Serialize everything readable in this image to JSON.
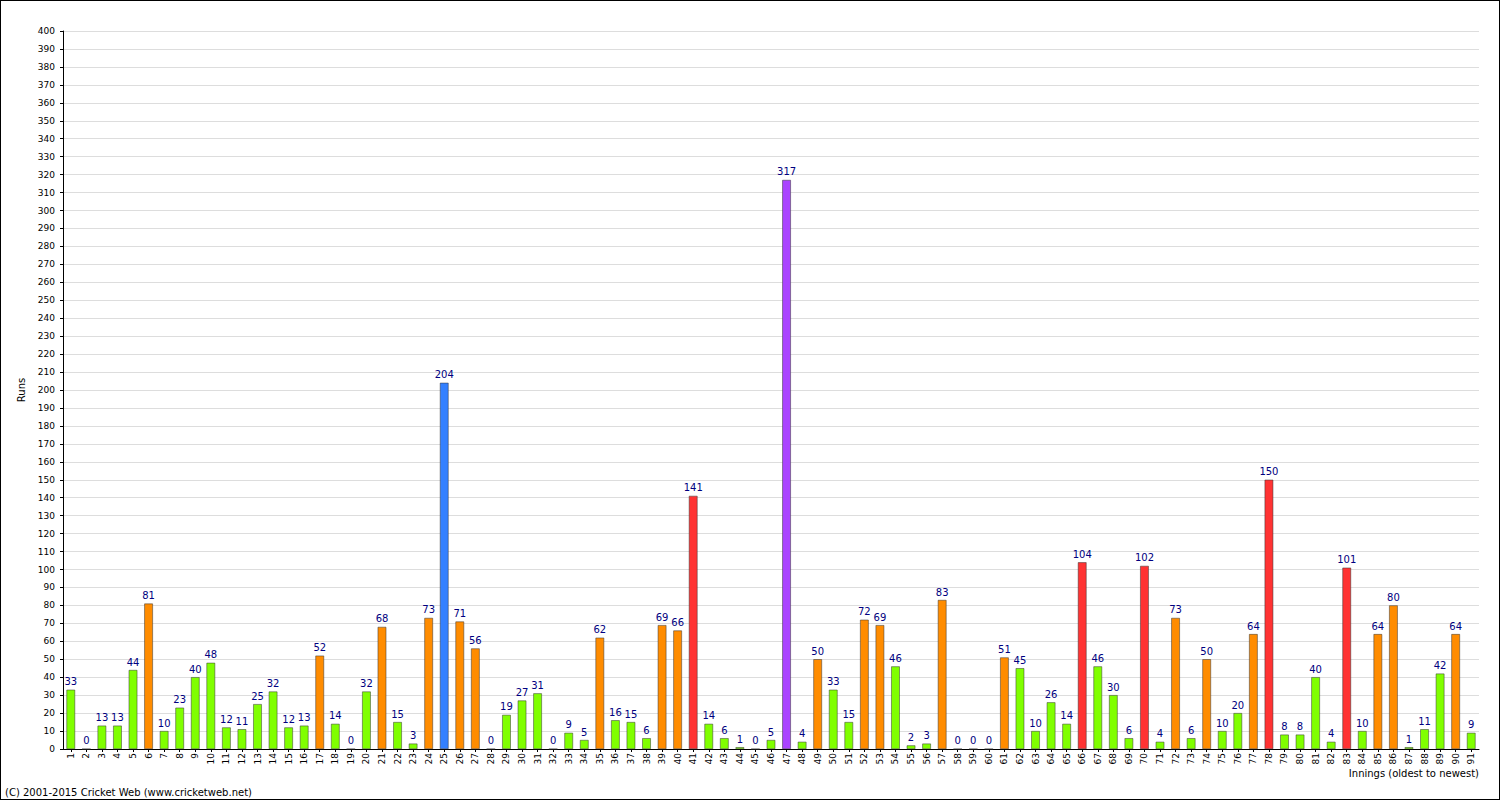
{
  "chart_data": {
    "type": "bar",
    "y_label": "Runs",
    "x_label": "Innings (oldest to newest)",
    "annotations": [
      "(C) 2001-2015 Cricket Web (www.cricketweb.net)"
    ],
    "categories": [
      "1",
      "2",
      "3",
      "4",
      "5",
      "6",
      "7",
      "8",
      "9",
      "10",
      "11",
      "12",
      "13",
      "14",
      "15",
      "16",
      "17",
      "18",
      "19",
      "20",
      "21",
      "22",
      "23",
      "24",
      "25",
      "26",
      "27",
      "28",
      "29",
      "30",
      "31",
      "32",
      "33",
      "34",
      "35",
      "36",
      "37",
      "38",
      "39",
      "40",
      "41",
      "42",
      "43",
      "44",
      "45",
      "46",
      "47",
      "48",
      "49",
      "50",
      "51",
      "52",
      "53",
      "54",
      "55",
      "56",
      "57",
      "58",
      "59",
      "60",
      "61",
      "62",
      "63",
      "64",
      "65",
      "66",
      "67",
      "68",
      "69",
      "70",
      "71",
      "72",
      "73",
      "74",
      "75",
      "76",
      "77",
      "78",
      "79",
      "80",
      "81",
      "82",
      "83",
      "84",
      "85",
      "86",
      "87",
      "88",
      "89",
      "90",
      "91"
    ],
    "values": [
      33,
      0,
      13,
      13,
      44,
      81,
      10,
      23,
      40,
      48,
      12,
      11,
      25,
      32,
      12,
      13,
      52,
      14,
      0,
      32,
      68,
      15,
      3,
      73,
      204,
      71,
      56,
      0,
      19,
      27,
      31,
      0,
      9,
      5,
      62,
      16,
      15,
      6,
      69,
      66,
      141,
      14,
      6,
      1,
      0,
      5,
      317,
      4,
      50,
      33,
      15,
      72,
      69,
      46,
      2,
      3,
      83,
      0,
      0,
      0,
      51,
      45,
      10,
      26,
      14,
      104,
      46,
      30,
      6,
      102,
      4,
      73,
      6,
      50,
      10,
      20,
      64,
      150,
      8,
      8,
      40,
      4,
      101,
      10,
      64,
      80,
      1,
      11,
      42,
      64,
      9
    ],
    "colors": [
      "#80ff00",
      "#80ff00",
      "#80ff00",
      "#80ff00",
      "#80ff00",
      "#ff8c00",
      "#80ff00",
      "#80ff00",
      "#80ff00",
      "#80ff00",
      "#80ff00",
      "#80ff00",
      "#80ff00",
      "#80ff00",
      "#80ff00",
      "#80ff00",
      "#ff8c00",
      "#80ff00",
      "#80ff00",
      "#80ff00",
      "#ff8c00",
      "#80ff00",
      "#80ff00",
      "#ff8c00",
      "#3380ff",
      "#ff8c00",
      "#ff8c00",
      "#80ff00",
      "#80ff00",
      "#80ff00",
      "#80ff00",
      "#80ff00",
      "#80ff00",
      "#80ff00",
      "#ff8c00",
      "#80ff00",
      "#80ff00",
      "#80ff00",
      "#ff8c00",
      "#ff8c00",
      "#ff3333",
      "#80ff00",
      "#80ff00",
      "#80ff00",
      "#80ff00",
      "#80ff00",
      "#aa44ff",
      "#80ff00",
      "#ff8c00",
      "#80ff00",
      "#80ff00",
      "#ff8c00",
      "#ff8c00",
      "#80ff00",
      "#80ff00",
      "#80ff00",
      "#ff8c00",
      "#80ff00",
      "#80ff00",
      "#80ff00",
      "#ff8c00",
      "#80ff00",
      "#80ff00",
      "#80ff00",
      "#80ff00",
      "#ff3333",
      "#80ff00",
      "#80ff00",
      "#80ff00",
      "#ff3333",
      "#80ff00",
      "#ff8c00",
      "#80ff00",
      "#ff8c00",
      "#80ff00",
      "#80ff00",
      "#ff8c00",
      "#ff3333",
      "#80ff00",
      "#80ff00",
      "#80ff00",
      "#80ff00",
      "#ff3333",
      "#80ff00",
      "#ff8c00",
      "#ff8c00",
      "#80ff00",
      "#80ff00",
      "#80ff00",
      "#ff8c00",
      "#80ff00"
    ],
    "ylim": [
      0,
      400
    ],
    "yticks": [
      0,
      10,
      20,
      30,
      40,
      50,
      60,
      70,
      80,
      90,
      100,
      110,
      120,
      130,
      140,
      150,
      160,
      170,
      180,
      190,
      200,
      210,
      220,
      230,
      240,
      250,
      260,
      270,
      280,
      290,
      300,
      310,
      320,
      330,
      340,
      350,
      360,
      370,
      380,
      390,
      400
    ],
    "grid": true,
    "data_labels": true
  }
}
